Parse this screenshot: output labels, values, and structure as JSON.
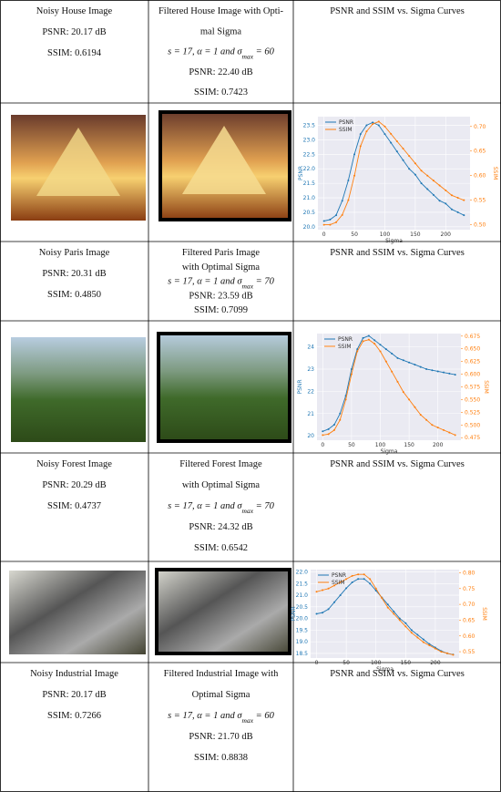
{
  "table": {
    "rows": [
      [
        [
          "Noisy House Image",
          "PSNR: 20.17 dB",
          "SSIM: 0.6194"
        ],
        [
          "Filtered House Image with Opti-",
          "mal Sigma",
          [
            "s = 17,  α = 1  and  σ",
            "max",
            " = 60"
          ],
          "PSNR: 22.40 dB",
          "SSIM: 0.7423"
        ],
        [
          "PSNR and SSIM vs. Sigma Curves"
        ]
      ],
      [
        [
          "Noisy Paris Image",
          "PSNR: 20.31 dB",
          "SSIM: 0.4850"
        ],
        [
          "Filtered Paris Image",
          "with Optimal Sigma",
          [
            "s = 17, α = 1  and  σ",
            "max",
            " = 70"
          ],
          "PSNR: 23.59 dB",
          "SSIM: 0.7099"
        ],
        [
          "PSNR and SSIM vs. Sigma Curves"
        ]
      ],
      [
        [
          "Noisy Forest Image",
          "PSNR: 20.29 dB",
          "SSIM: 0.4737"
        ],
        [
          "Filtered Forest Image",
          "with Optimal Sigma",
          [
            "s = 17,  α = 1  and  σ",
            "max",
            " = 70"
          ],
          "PSNR: 24.32 dB",
          "SSIM: 0.6542"
        ],
        [
          "PSNR and SSIM vs. Sigma Curves"
        ]
      ],
      [
        [
          "Noisy Industrial Image",
          "PSNR: 20.17 dB",
          "SSIM: 0.7266"
        ],
        [
          "Filtered Industrial Image with",
          "Optimal Sigma",
          [
            "s = 17,  α = 1  and σ",
            "max",
            " = 60"
          ],
          "PSNR: 21.70 dB",
          "SSIM: 0.8838"
        ],
        [
          "PSNR and SSIM vs. Sigma Curves"
        ]
      ]
    ]
  },
  "chart_data": [
    {
      "type": "line",
      "xlabel": "Sigma",
      "ylabel": "PSNR",
      "y2label": "SSIM",
      "x": [
        0,
        10,
        20,
        30,
        40,
        50,
        60,
        70,
        80,
        90,
        100,
        110,
        120,
        130,
        140,
        150,
        160,
        170,
        180,
        190,
        200,
        210,
        220,
        230
      ],
      "xlim": [
        -10,
        240
      ],
      "xticks": [
        0,
        50,
        100,
        150,
        200
      ],
      "ylim": [
        19.9,
        23.8
      ],
      "yticks": [
        {
          "value": 20,
          "label": "20.0"
        },
        20.5,
        {
          "value": 21,
          "label": "21.0"
        },
        21.5,
        {
          "value": 22,
          "label": "22.0"
        },
        22.5,
        {
          "value": 23,
          "label": "23.0"
        },
        23.5
      ],
      "y2lim": [
        0.49,
        0.72
      ],
      "y2ticks": [
        {
          "value": 0.5,
          "label": "0.50"
        },
        0.55,
        {
          "value": 0.6,
          "label": "0.60"
        },
        0.65,
        {
          "value": 0.7,
          "label": "0.70"
        }
      ],
      "series": [
        {
          "name": "PSNR",
          "color": "#1f77b4",
          "values": [
            20.2,
            20.25,
            20.4,
            20.9,
            21.6,
            22.5,
            23.2,
            23.5,
            23.6,
            23.5,
            23.2,
            22.9,
            22.6,
            22.3,
            22.0,
            21.8,
            21.5,
            21.3,
            21.1,
            20.9,
            20.8,
            20.6,
            20.5,
            20.4
          ]
        },
        {
          "name": "SSIM",
          "color": "#ff7f0e",
          "axis": "y2",
          "values": [
            0.5,
            0.5,
            0.505,
            0.52,
            0.55,
            0.6,
            0.66,
            0.69,
            0.705,
            0.71,
            0.7,
            0.685,
            0.67,
            0.655,
            0.64,
            0.625,
            0.61,
            0.6,
            0.59,
            0.58,
            0.57,
            0.56,
            0.555,
            0.55
          ]
        }
      ]
    },
    {
      "type": "line",
      "xlabel": "Sigma",
      "ylabel": "PSNR",
      "y2label": "SSIM",
      "x": [
        0,
        10,
        20,
        30,
        40,
        50,
        60,
        70,
        80,
        90,
        100,
        110,
        120,
        130,
        140,
        150,
        160,
        170,
        180,
        190,
        200,
        210,
        220,
        230
      ],
      "xlim": [
        -10,
        240
      ],
      "xticks": [
        0,
        50,
        100,
        150,
        200
      ],
      "ylim": [
        19.8,
        24.6
      ],
      "yticks": [
        20,
        21,
        22,
        23,
        24
      ],
      "y2lim": [
        0.47,
        0.68
      ],
      "y2ticks": [
        0.475,
        {
          "value": 0.5,
          "label": "0.500"
        },
        0.525,
        {
          "value": 0.55,
          "label": "0.550"
        },
        0.575,
        {
          "value": 0.6,
          "label": "0.600"
        },
        0.625,
        {
          "value": 0.65,
          "label": "0.650"
        },
        0.675
      ],
      "series": [
        {
          "name": "PSNR",
          "color": "#1f77b4",
          "values": [
            20.2,
            20.3,
            20.5,
            21.0,
            21.8,
            23.0,
            23.9,
            24.4,
            24.5,
            24.3,
            24.1,
            23.9,
            23.7,
            23.5,
            23.4,
            23.3,
            23.2,
            23.1,
            23.0,
            22.95,
            22.9,
            22.85,
            22.8,
            22.75
          ]
        },
        {
          "name": "SSIM",
          "color": "#ff7f0e",
          "axis": "y2",
          "values": [
            0.48,
            0.482,
            0.49,
            0.51,
            0.55,
            0.6,
            0.645,
            0.665,
            0.668,
            0.66,
            0.645,
            0.625,
            0.605,
            0.585,
            0.565,
            0.55,
            0.535,
            0.52,
            0.51,
            0.5,
            0.495,
            0.49,
            0.485,
            0.48
          ]
        }
      ]
    },
    {
      "type": "line",
      "xlabel": "Sigma",
      "ylabel": "PSNR",
      "y2label": "SSIM",
      "x": [
        0,
        10,
        20,
        30,
        40,
        50,
        60,
        70,
        80,
        90,
        100,
        110,
        120,
        130,
        140,
        150,
        160,
        170,
        180,
        190,
        200,
        210,
        220,
        230
      ],
      "xlim": [
        -10,
        240
      ],
      "xticks": [
        0,
        50,
        100,
        150,
        200
      ],
      "ylim": [
        18.3,
        22.1
      ],
      "yticks": [
        18.5,
        {
          "value": 19,
          "label": "19.0"
        },
        19.5,
        {
          "value": 20,
          "label": "20.0"
        },
        20.5,
        {
          "value": 21,
          "label": "21.0"
        },
        21.5,
        {
          "value": 22,
          "label": "22.0"
        }
      ],
      "y2lim": [
        0.53,
        0.81
      ],
      "y2ticks": [
        0.55,
        {
          "value": 0.6,
          "label": "0.60"
        },
        0.65,
        {
          "value": 0.7,
          "label": "0.70"
        },
        0.75,
        {
          "value": 0.8,
          "label": "0.80"
        }
      ],
      "series": [
        {
          "name": "PSNR",
          "color": "#1f77b4",
          "values": [
            20.2,
            20.25,
            20.4,
            20.7,
            21.0,
            21.3,
            21.55,
            21.7,
            21.7,
            21.5,
            21.2,
            20.9,
            20.6,
            20.3,
            20.0,
            19.8,
            19.5,
            19.3,
            19.1,
            18.9,
            18.75,
            18.6,
            18.5,
            18.45
          ]
        },
        {
          "name": "SSIM",
          "color": "#ff7f0e",
          "axis": "y2",
          "values": [
            0.74,
            0.745,
            0.75,
            0.76,
            0.77,
            0.78,
            0.79,
            0.795,
            0.795,
            0.78,
            0.75,
            0.72,
            0.69,
            0.67,
            0.65,
            0.63,
            0.61,
            0.595,
            0.58,
            0.57,
            0.56,
            0.55,
            0.545,
            0.54
          ]
        }
      ]
    }
  ]
}
